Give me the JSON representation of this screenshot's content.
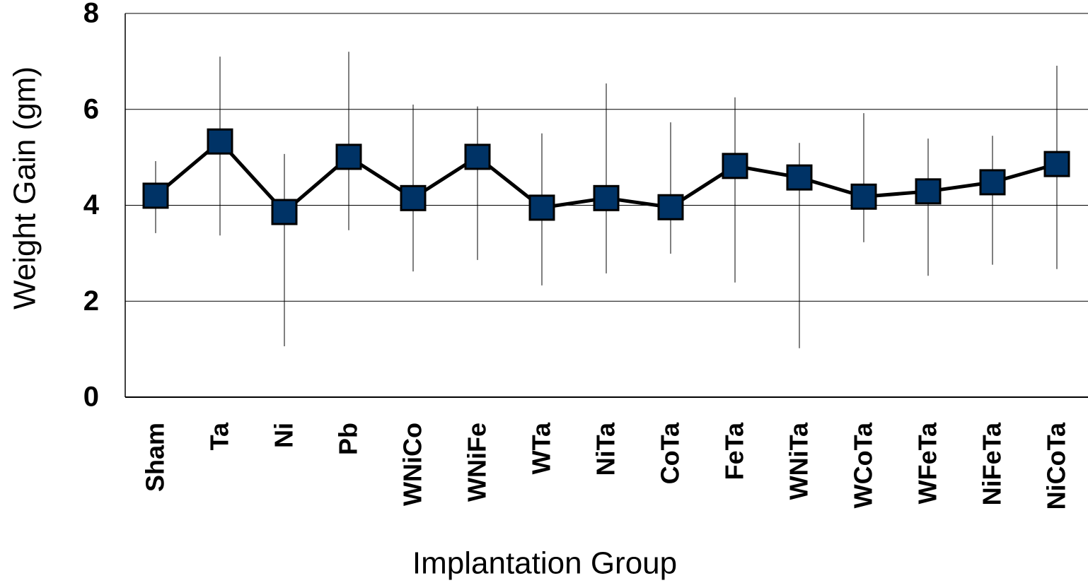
{
  "chart_data": {
    "type": "line",
    "xlabel": "Implantation Group",
    "ylabel": "Weight Gain (gm)",
    "categories": [
      "Sham",
      "Ta",
      "Ni",
      "Pb",
      "WNiCo",
      "WNiFe",
      "WTa",
      "NiTa",
      "CoTa",
      "FeTa",
      "WNiTa",
      "WCoTa",
      "WFeTa",
      "NiFeTa",
      "NiCoTa"
    ],
    "values": [
      4.2,
      5.33,
      3.86,
      5.01,
      4.15,
      5.01,
      3.95,
      4.15,
      3.96,
      4.82,
      4.58,
      4.18,
      4.29,
      4.48,
      4.86
    ],
    "error_high": [
      4.92,
      7.1,
      5.07,
      7.2,
      6.1,
      6.06,
      5.5,
      6.54,
      5.73,
      6.25,
      5.3,
      5.92,
      5.39,
      5.45,
      6.91
    ],
    "error_low": [
      3.42,
      3.37,
      1.06,
      3.48,
      2.62,
      2.86,
      2.33,
      2.58,
      2.99,
      2.39,
      1.02,
      3.23,
      2.53,
      2.76,
      2.67
    ],
    "color": "#003366",
    "line_color": "#000000",
    "ylim": [
      0,
      8
    ],
    "yticks": [
      0,
      2,
      4,
      6,
      8
    ],
    "grid": true
  }
}
